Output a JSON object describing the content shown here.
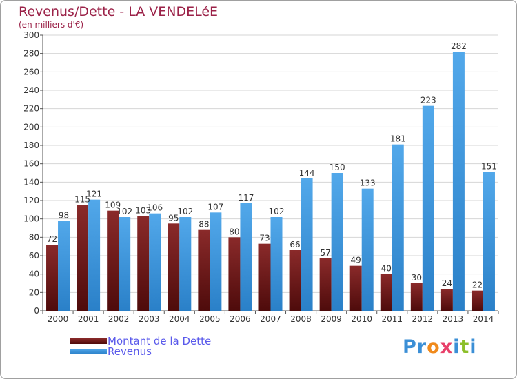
{
  "chart_data": {
    "type": "bar",
    "title": "Revenus/Dette - LA VENDELéE",
    "subtitle": "(en milliers d'€)",
    "categories": [
      "2000",
      "2001",
      "2002",
      "2003",
      "2004",
      "2005",
      "2006",
      "2007",
      "2008",
      "2009",
      "2010",
      "2011",
      "2012",
      "2013",
      "2014"
    ],
    "series": [
      {
        "name": "Montant de la Dette",
        "color": "#7a1a1a",
        "values": [
          72,
          115,
          109,
          103,
          95,
          88,
          80,
          73,
          66,
          57,
          49,
          40,
          30,
          24,
          22
        ]
      },
      {
        "name": "Revenus",
        "color": "#3a92d8",
        "values": [
          98,
          121,
          102,
          106,
          102,
          107,
          117,
          102,
          144,
          150,
          133,
          181,
          223,
          282,
          151
        ]
      }
    ],
    "ylim": [
      0,
      300
    ],
    "yticks": [
      0,
      20,
      40,
      60,
      80,
      100,
      120,
      140,
      160,
      180,
      200,
      220,
      240,
      260,
      280,
      300
    ],
    "grid": true,
    "legend_position": "bottom-left"
  },
  "logo": {
    "letters": [
      {
        "ch": "P",
        "color": "#3b8fd6"
      },
      {
        "ch": "r",
        "color": "#3b8fd6"
      },
      {
        "ch": "o",
        "color": "#f08a1c"
      },
      {
        "ch": "x",
        "color": "#e8406a"
      },
      {
        "ch": "i",
        "color": "#3b8fd6"
      },
      {
        "ch": "t",
        "color": "#8cbf2a"
      },
      {
        "ch": "i",
        "color": "#3b8fd6"
      }
    ]
  }
}
